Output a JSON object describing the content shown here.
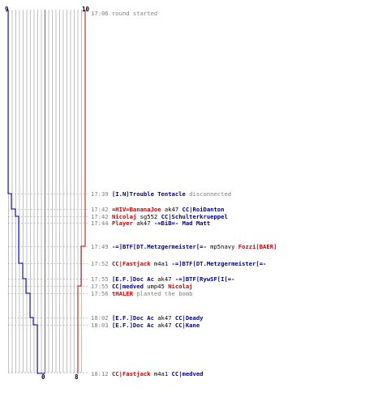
{
  "colors": {
    "blue": "#0000aa",
    "red": "#cc0000",
    "grid": "#c0c0c0",
    "text": "#7f7f7f"
  },
  "scores": {
    "blue_start": "9",
    "red_start": "10",
    "blue_end": "0",
    "red_end": "8"
  },
  "events": [
    {
      "time": "17:06",
      "parts": [
        {
          "t": "round started",
          "c": "msg"
        }
      ]
    },
    {
      "time": "17:39",
      "parts": [
        {
          "t": "[I.N]Trouble Tentacle",
          "c": "team-blue"
        },
        {
          "t": " disconnected",
          "c": "msg"
        }
      ]
    },
    {
      "time": "17:42",
      "parts": [
        {
          "t": "=HIV=BananaJoe",
          "c": "team-red"
        },
        {
          "t": " ak47 ",
          "c": "weapon"
        },
        {
          "t": "CC|RoiDanton",
          "c": "team-blue"
        }
      ]
    },
    {
      "time": "17:42",
      "parts": [
        {
          "t": "Nicolaj",
          "c": "team-red"
        },
        {
          "t": " sg552 ",
          "c": "weapon"
        },
        {
          "t": "CC|Schulterkrueppel",
          "c": "team-blue"
        }
      ]
    },
    {
      "time": "17:44",
      "parts": [
        {
          "t": "Player",
          "c": "team-red"
        },
        {
          "t": " ak47 ",
          "c": "weapon"
        },
        {
          "t": "-=BiB=- Mad Matt",
          "c": "team-blue"
        }
      ]
    },
    {
      "time": "17:49",
      "parts": [
        {
          "t": "-=]BTF[DT.Metzgermeister[=-",
          "c": "team-blue"
        },
        {
          "t": " mp5navy ",
          "c": "weapon"
        },
        {
          "t": "Fozzi[BAER]",
          "c": "team-red"
        }
      ]
    },
    {
      "time": "17:52",
      "parts": [
        {
          "t": "CC|Fastjack",
          "c": "team-red"
        },
        {
          "t": " m4a1 ",
          "c": "weapon"
        },
        {
          "t": "-=]BTF[DT.Metzgermeister[=-",
          "c": "team-blue"
        }
      ]
    },
    {
      "time": "17:55",
      "parts": [
        {
          "t": "[E.F.]Doc Ac",
          "c": "team-blue"
        },
        {
          "t": " ak47 ",
          "c": "weapon"
        },
        {
          "t": "-=]BTF[RywSF[I[=-",
          "c": "team-blue"
        }
      ]
    },
    {
      "time": "17:55",
      "parts": [
        {
          "t": "CC|medved",
          "c": "team-blue"
        },
        {
          "t": " ump45 ",
          "c": "weapon"
        },
        {
          "t": "Nicolaj",
          "c": "team-red"
        }
      ]
    },
    {
      "time": "17:56",
      "parts": [
        {
          "t": "tHALER",
          "c": "team-red"
        },
        {
          "t": " planted the bomb",
          "c": "msg"
        }
      ]
    },
    {
      "time": "18:02",
      "parts": [
        {
          "t": "[E.F.]Doc Ac",
          "c": "team-blue"
        },
        {
          "t": " ak47 ",
          "c": "weapon"
        },
        {
          "t": "CC|Deady",
          "c": "team-blue"
        }
      ]
    },
    {
      "time": "18:03",
      "parts": [
        {
          "t": "[E.F.]Doc Ac",
          "c": "team-blue"
        },
        {
          "t": " ak47 ",
          "c": "weapon"
        },
        {
          "t": "CC|Kane",
          "c": "team-blue"
        }
      ]
    },
    {
      "time": "18:12",
      "parts": [
        {
          "t": "CC|Fastjack",
          "c": "team-red"
        },
        {
          "t": " m4a1 ",
          "c": "weapon"
        },
        {
          "t": "CC|medved",
          "c": "team-blue"
        }
      ]
    }
  ]
}
